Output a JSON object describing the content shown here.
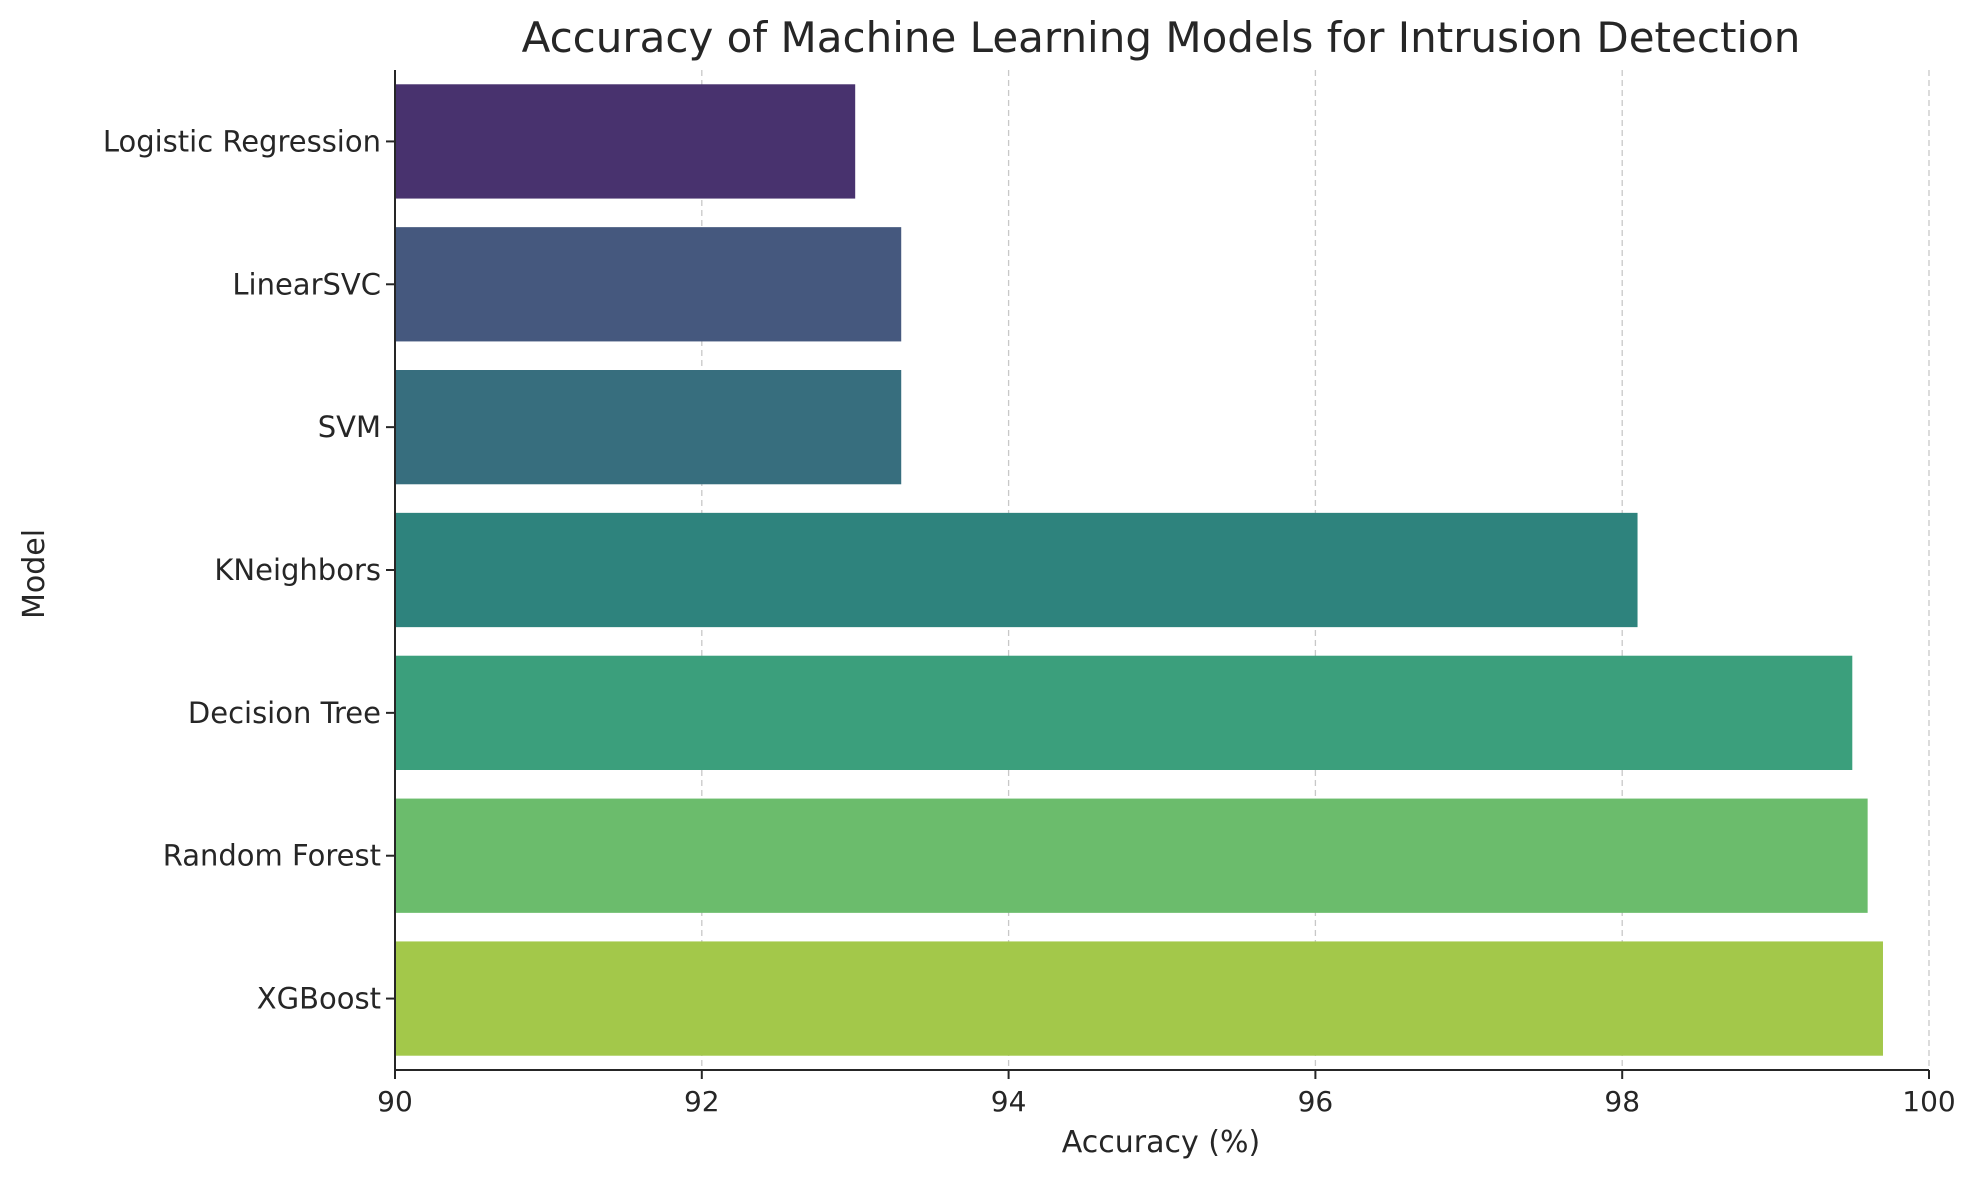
{
  "chart_data": {
    "type": "bar",
    "orientation": "horizontal",
    "title": "Accuracy of Machine Learning Models for Intrusion Detection",
    "xlabel": "Accuracy (%)",
    "ylabel": "Model",
    "xlim": [
      90,
      100
    ],
    "xticks": [
      90,
      92,
      94,
      96,
      98,
      100
    ],
    "grid": "vertical dashed",
    "categories": [
      "Logistic Regression",
      "LinearSVC",
      "SVM",
      "KNeighbors",
      "Decision Tree",
      "Random Forest",
      "XGBoost"
    ],
    "values": [
      93.0,
      93.3,
      93.3,
      98.1,
      99.5,
      99.6,
      99.7
    ],
    "colors": [
      "#48326e",
      "#45587e",
      "#376e7e",
      "#2e837d",
      "#3b9f7c",
      "#6bbc6c",
      "#a3c84a"
    ]
  }
}
